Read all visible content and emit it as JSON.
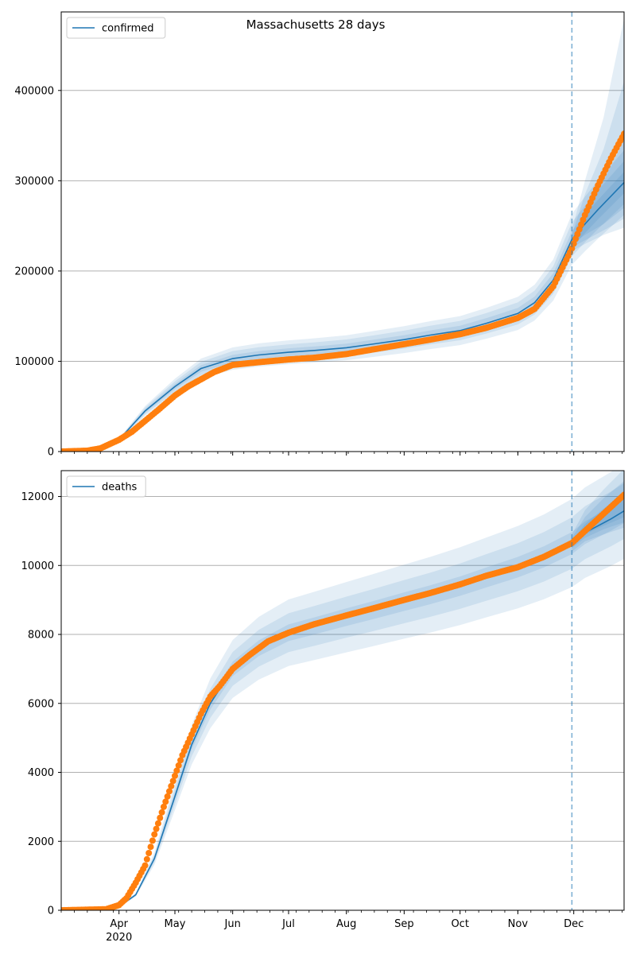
{
  "title": "Massachusetts 28 days",
  "colors": {
    "line": "#1f77b4",
    "band": "#1f77b4",
    "observed": "#ff7f0e",
    "grid": "#b0b0b0",
    "vline": "#1f77b4"
  },
  "x_axis": {
    "start": "2020-03-01",
    "end": "2020-12-28",
    "month_ticks": [
      {
        "date": "2020-04-01",
        "label": "Apr"
      },
      {
        "date": "2020-05-01",
        "label": "May"
      },
      {
        "date": "2020-06-01",
        "label": "Jun"
      },
      {
        "date": "2020-07-01",
        "label": "Jul"
      },
      {
        "date": "2020-08-01",
        "label": "Aug"
      },
      {
        "date": "2020-09-01",
        "label": "Sep"
      },
      {
        "date": "2020-10-01",
        "label": "Oct"
      },
      {
        "date": "2020-11-01",
        "label": "Nov"
      },
      {
        "date": "2020-12-01",
        "label": "Dec"
      }
    ],
    "year_label": "2020",
    "forecast_start": "2020-11-30"
  },
  "chart_data": [
    {
      "type": "line",
      "legend": "confirmed",
      "legend_position": "upper-left",
      "grid": "horizontal",
      "ylim": [
        0,
        487000
      ],
      "yticks": [
        0,
        100000,
        200000,
        300000,
        400000
      ],
      "model": {
        "x": [
          "2020-03-01",
          "2020-03-15",
          "2020-04-01",
          "2020-04-15",
          "2020-05-01",
          "2020-05-15",
          "2020-06-01",
          "2020-06-15",
          "2020-07-01",
          "2020-07-15",
          "2020-08-01",
          "2020-08-15",
          "2020-09-01",
          "2020-09-15",
          "2020-10-01",
          "2020-10-15",
          "2020-11-01",
          "2020-11-10",
          "2020-11-20",
          "2020-11-30",
          "2020-12-07",
          "2020-12-14",
          "2020-12-21",
          "2020-12-28"
        ],
        "y": [
          0,
          1500,
          13000,
          45000,
          72000,
          92000,
          103000,
          107000,
          110000,
          112000,
          115000,
          119000,
          124000,
          129000,
          134000,
          142000,
          153000,
          165000,
          190000,
          235000,
          252000,
          268000,
          283000,
          298000
        ],
        "band_inner": [
          1.04,
          0.96
        ],
        "band_mid": [
          1.08,
          0.92
        ],
        "band_outer": [
          1.12,
          0.88
        ],
        "forecast_bands": {
          "inner": [
            [
              235000,
              230000
            ],
            [
              268000,
              240000
            ],
            [
              300000,
              252000
            ],
            [
              345000,
              270000
            ]
          ],
          "mid": [
            [
              240000,
              226000
            ],
            [
              285000,
              234000
            ],
            [
              335000,
              245000
            ],
            [
              410000,
              258000
            ]
          ],
          "outer": [
            [
              245000,
              222000
            ],
            [
              300000,
              230000
            ],
            [
              370000,
              240000
            ],
            [
              480000,
              248000
            ]
          ]
        }
      },
      "observed": {
        "x": [
          "2020-03-01",
          "2020-03-15",
          "2020-03-22",
          "2020-04-01",
          "2020-04-08",
          "2020-04-15",
          "2020-04-22",
          "2020-05-01",
          "2020-05-08",
          "2020-05-15",
          "2020-05-22",
          "2020-06-01",
          "2020-06-15",
          "2020-07-01",
          "2020-07-15",
          "2020-08-01",
          "2020-08-15",
          "2020-09-01",
          "2020-09-15",
          "2020-10-01",
          "2020-10-15",
          "2020-11-01",
          "2020-11-10",
          "2020-11-20",
          "2020-11-30",
          "2020-12-07",
          "2020-12-14",
          "2020-12-21",
          "2020-12-28"
        ],
        "y": [
          0,
          1000,
          3500,
          13000,
          22000,
          34000,
          46000,
          62000,
          72000,
          80000,
          88000,
          96000,
          99000,
          102000,
          104000,
          108000,
          113000,
          119000,
          124000,
          130000,
          137000,
          148000,
          158000,
          183000,
          225000,
          262000,
          295000,
          325000,
          352000
        ]
      }
    },
    {
      "type": "line",
      "legend": "deaths",
      "legend_position": "upper-left",
      "grid": "horizontal",
      "ylim": [
        0,
        12750
      ],
      "yticks": [
        0,
        2000,
        4000,
        6000,
        8000,
        10000,
        12000
      ],
      "model": {
        "x": [
          "2020-03-01",
          "2020-03-25",
          "2020-04-01",
          "2020-04-10",
          "2020-04-20",
          "2020-05-01",
          "2020-05-10",
          "2020-05-20",
          "2020-06-01",
          "2020-06-15",
          "2020-07-01",
          "2020-07-15",
          "2020-08-01",
          "2020-08-15",
          "2020-09-01",
          "2020-09-15",
          "2020-10-01",
          "2020-10-15",
          "2020-11-01",
          "2020-11-15",
          "2020-11-30",
          "2020-12-07",
          "2020-12-14",
          "2020-12-21",
          "2020-12-28"
        ],
        "y": [
          0,
          20,
          100,
          450,
          1500,
          3300,
          4800,
          6000,
          7000,
          7600,
          8050,
          8250,
          8500,
          8700,
          8950,
          9150,
          9400,
          9650,
          9950,
          10250,
          10650,
          10950,
          11150,
          11350,
          11580
        ],
        "band_inner": [
          1.03,
          0.97
        ],
        "band_mid": [
          1.07,
          0.93
        ],
        "band_outer": [
          1.12,
          0.88
        ],
        "forecast_bands": {
          "inner": [
            [
              10700,
              10600
            ],
            [
              11200,
              10900
            ],
            [
              11650,
              11150
            ],
            [
              12100,
              11400
            ]
          ],
          "mid": [
            [
              10800,
              10500
            ],
            [
              11400,
              10800
            ],
            [
              11950,
              11050
            ],
            [
              12450,
              11250
            ]
          ],
          "outer": [
            [
              10900,
              10400
            ],
            [
              11600,
              10700
            ],
            [
              12200,
              10900
            ],
            [
              12800,
              11100
            ]
          ]
        }
      },
      "observed": {
        "x": [
          "2020-03-01",
          "2020-03-25",
          "2020-04-01",
          "2020-04-05",
          "2020-04-10",
          "2020-04-15",
          "2020-04-20",
          "2020-04-25",
          "2020-05-01",
          "2020-05-05",
          "2020-05-10",
          "2020-05-15",
          "2020-05-20",
          "2020-05-25",
          "2020-06-01",
          "2020-06-10",
          "2020-06-20",
          "2020-07-01",
          "2020-07-15",
          "2020-08-01",
          "2020-08-15",
          "2020-09-01",
          "2020-09-15",
          "2020-10-01",
          "2020-10-15",
          "2020-11-01",
          "2020-11-15",
          "2020-11-30",
          "2020-12-07",
          "2020-12-14",
          "2020-12-21",
          "2020-12-28"
        ],
        "y": [
          0,
          30,
          150,
          350,
          800,
          1300,
          2200,
          3000,
          3900,
          4500,
          5100,
          5700,
          6200,
          6500,
          7000,
          7400,
          7800,
          8050,
          8300,
          8550,
          8750,
          9000,
          9200,
          9450,
          9700,
          9950,
          10250,
          10650,
          11000,
          11350,
          11700,
          12050
        ]
      }
    }
  ]
}
